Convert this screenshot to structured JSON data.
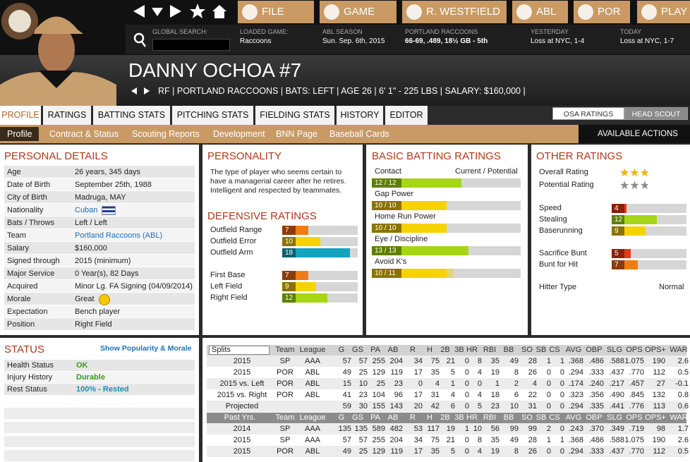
{
  "nav": {
    "buttons": [
      "FILE",
      "GAME",
      "R. WESTFIELD",
      "ABL",
      "POR",
      "PLAY"
    ]
  },
  "info": {
    "search_label": "GLOBAL SEARCH:",
    "items": [
      {
        "label": "LOADED GAME:",
        "value": "Raccoons"
      },
      {
        "label": "ABL SEASON",
        "value": "Sun. Sep. 6th, 2015"
      },
      {
        "label": "PORTLAND RACCOONS",
        "value": "66-69, .489, 18½ GB - 5th"
      },
      {
        "label": "YESTERDAY",
        "value": "Loss at NYC, 1-4"
      },
      {
        "label": "TODAY",
        "value": "Loss at NYC, 1-7"
      }
    ]
  },
  "player": {
    "name": "DANNY OCHOA",
    "number": "#7",
    "details": "RF | PORTLAND RACCOONS | BATS: LEFT | AGE 26 | 6' 1\" - 225 LBS | SALARY: $160,000 |"
  },
  "tabs": [
    "PROFILE",
    "RATINGS",
    "BATTING STATS",
    "PITCHING STATS",
    "FIELDING STATS",
    "HISTORY",
    "EDITOR"
  ],
  "rating_view": [
    "OSA RATINGS",
    "HEAD SCOUT"
  ],
  "subtabs": [
    "Profile",
    "Contract & Status",
    "Scouting Reports",
    "Development",
    "BNN Page",
    "Baseball Cards"
  ],
  "actions": "AVAILABLE ACTIONS",
  "personal": {
    "title": "PERSONAL DETAILS",
    "rows": [
      {
        "label": "Age",
        "value": "26 years, 345 days"
      },
      {
        "label": "Date of Birth",
        "value": "September 25th, 1988"
      },
      {
        "label": "City of Birth",
        "value": "Madruga, MAY"
      },
      {
        "label": "Nationality",
        "value": "Cuban"
      },
      {
        "label": "Bats / Throws",
        "value": "Left / Left"
      },
      {
        "label": "Team",
        "value": "Portland Raccoons (ABL)"
      },
      {
        "label": "Salary",
        "value": "$160,000"
      },
      {
        "label": "Signed through",
        "value": "2015 (minimum)"
      },
      {
        "label": "Major Service",
        "value": "0 Year(s), 82 Days"
      },
      {
        "label": "Acquired",
        "value": "Minor Lg. FA Signing (04/09/2014)"
      },
      {
        "label": "Morale",
        "value": "Great"
      },
      {
        "label": "Expectation",
        "value": "Bench player"
      },
      {
        "label": "Position",
        "value": "Right Field"
      }
    ]
  },
  "personality": {
    "title": "PERSONALITY",
    "text": "The type of player who seems certain to have a managerial career after he retires. Intelligent and respected by teammates."
  },
  "defense": {
    "title": "DEFENSIVE RATINGS",
    "groups": [
      [
        {
          "label": "Outfield Range",
          "value": 7
        },
        {
          "label": "Outfield Error",
          "value": 10
        },
        {
          "label": "Outfield Arm",
          "value": 18
        }
      ],
      [
        {
          "label": "First Base",
          "value": 7
        },
        {
          "label": "Left Field",
          "value": 9
        },
        {
          "label": "Right Field",
          "value": 12
        }
      ]
    ]
  },
  "batting": {
    "title": "BASIC BATTING RATINGS",
    "column": "Current / Potential",
    "rows": [
      {
        "label": "Contact",
        "current": 12,
        "potential": 12,
        "text": "12 / 12"
      },
      {
        "label": "Gap Power",
        "current": 10,
        "potential": 10,
        "text": "10 / 10"
      },
      {
        "label": "Home Run Power",
        "current": 10,
        "potential": 10,
        "text": "10 / 10"
      },
      {
        "label": "Eye / Discipline",
        "current": 13,
        "potential": 13,
        "text": "13 / 13"
      },
      {
        "label": "Avoid K's",
        "current": 10,
        "potential": 11,
        "text": "10 / 11"
      }
    ]
  },
  "other": {
    "title": "OTHER RATINGS",
    "stars": [
      {
        "label": "Overall Rating",
        "value": 2.5,
        "color": "#f0b400"
      },
      {
        "label": "Potential Rating",
        "value": 2.5,
        "color": "#8a8a8a"
      }
    ],
    "groups": [
      [
        {
          "label": "Speed",
          "value": 4
        },
        {
          "label": "Stealing",
          "value": 12
        },
        {
          "label": "Baserunning",
          "value": 9
        }
      ],
      [
        {
          "label": "Sacrifice Bunt",
          "value": 5
        },
        {
          "label": "Bunt for Hit",
          "value": 7
        }
      ]
    ],
    "hitter_type": {
      "label": "Hitter Type",
      "value": "Normal"
    }
  },
  "status": {
    "title": "STATUS",
    "link": "Show Popularity & Morale",
    "rows": [
      {
        "label": "Health Status",
        "value": "OK",
        "color": "#3a9a1a"
      },
      {
        "label": "Injury History",
        "value": "Durable",
        "color": "#3a9a1a"
      },
      {
        "label": "Rest Status",
        "value": "100% - Rested",
        "color": "#1a8fb0"
      }
    ]
  },
  "stats": {
    "splits_label": "Splits",
    "past_label": "Past Yrs.",
    "columns": [
      "Team",
      "League",
      "G",
      "GS",
      "PA",
      "AB",
      "R",
      "H",
      "2B",
      "3B",
      "HR",
      "RBI",
      "BB",
      "SO",
      "SB",
      "CS",
      "AVG",
      "OBP",
      "SLG",
      "OPS",
      "OPS+",
      "WAR"
    ],
    "rows": [
      {
        "label": "2015",
        "team": "SP",
        "league": "AAA",
        "stats": [
          "57",
          "57",
          "255",
          "204",
          "34",
          "75",
          "21",
          "0",
          "8",
          "35",
          "49",
          "28",
          "1",
          "1",
          ".368",
          ".486",
          ".588",
          "1.075",
          "190",
          "2.6"
        ]
      },
      {
        "label": "2015",
        "team": "POR",
        "league": "ABL",
        "stats": [
          "49",
          "25",
          "129",
          "119",
          "17",
          "35",
          "5",
          "0",
          "4",
          "19",
          "8",
          "26",
          "0",
          "0",
          ".294",
          ".333",
          ".437",
          ".770",
          "112",
          "0.5"
        ]
      },
      {
        "label": "2015 vs. Left",
        "team": "POR",
        "league": "ABL",
        "stats": [
          "15",
          "10",
          "25",
          "23",
          "0",
          "4",
          "1",
          "0",
          "0",
          "1",
          "2",
          "4",
          "0",
          "0",
          ".174",
          ".240",
          ".217",
          ".457",
          "27",
          "-0.1"
        ]
      },
      {
        "label": "2015 vs. Right",
        "team": "POR",
        "league": "ABL",
        "stats": [
          "41",
          "23",
          "104",
          "96",
          "17",
          "31",
          "4",
          "0",
          "4",
          "18",
          "6",
          "22",
          "0",
          "0",
          ".323",
          ".356",
          ".490",
          ".845",
          "132",
          "0.8"
        ]
      },
      {
        "label": "Projected",
        "stats": [
          "59",
          "30",
          "155",
          "143",
          "20",
          "42",
          "6",
          "0",
          "5",
          "23",
          "10",
          "31",
          "0",
          "0",
          ".294",
          ".335",
          ".441",
          ".776",
          "113",
          "0.6"
        ]
      }
    ],
    "past_rows": [
      {
        "label": "2014",
        "team": "SP",
        "league": "AAA",
        "stats": [
          "135",
          "135",
          "589",
          "482",
          "53",
          "117",
          "19",
          "1",
          "10",
          "56",
          "99",
          "99",
          "2",
          "0",
          ".243",
          ".370",
          ".349",
          ".719",
          "98",
          "1.7"
        ]
      },
      {
        "label": "2015",
        "team": "SP",
        "league": "AAA",
        "stats": [
          "57",
          "57",
          "255",
          "204",
          "34",
          "75",
          "21",
          "0",
          "8",
          "35",
          "49",
          "28",
          "1",
          "1",
          ".368",
          ".486",
          ".588",
          "1.075",
          "190",
          "2.6"
        ]
      },
      {
        "label": "2015",
        "team": "POR",
        "league": "ABL",
        "stats": [
          "49",
          "25",
          "129",
          "119",
          "17",
          "35",
          "5",
          "0",
          "4",
          "19",
          "8",
          "26",
          "0",
          "0",
          ".294",
          ".333",
          ".437",
          ".770",
          "112",
          "0.5"
        ]
      }
    ]
  }
}
